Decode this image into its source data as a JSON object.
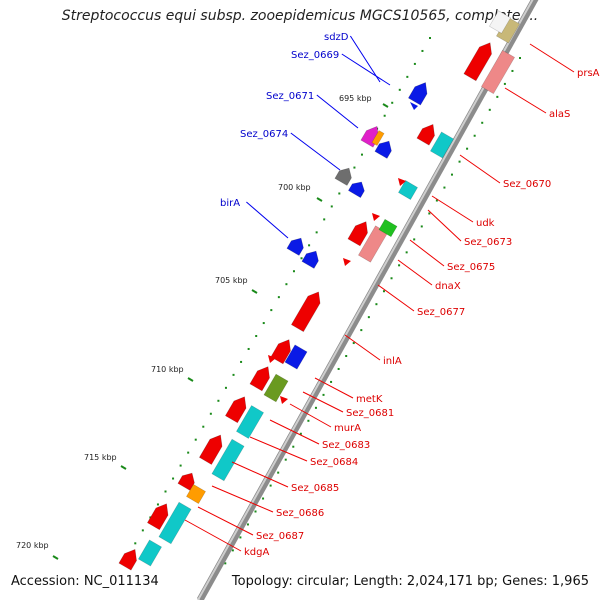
{
  "title": "Streptococcus equi subsp. zooepidemicus MGCS10565, complete ...",
  "footer": {
    "accession": "Accession: NC_011134",
    "topology": "Topology: circular; Length: 2,024,171 bp; Genes: 1,965"
  },
  "colors": {
    "backbone": "#8c8c8c",
    "forward_label": "#0000cc",
    "reverse_label": "#dd0000",
    "tick_mark": "#1a8a1a"
  },
  "kbp_labels": [
    "695 kbp",
    "700 kbp",
    "705 kbp",
    "710 kbp",
    "715 kbp",
    "720 kbp"
  ],
  "forward_genes": [
    "sdzD",
    "Sez_0669",
    "Sez_0671",
    "Sez_0674",
    "birA"
  ],
  "reverse_genes": [
    "prsA",
    "alaS",
    "Sez_0670",
    "udk",
    "Sez_0673",
    "Sez_0675",
    "dnaX",
    "Sez_0677",
    "inlA",
    "metK",
    "Sez_0681",
    "murA",
    "Sez_0683",
    "Sez_0684",
    "Sez_0685",
    "Sez_0686",
    "Sez_0687",
    "kdgA"
  ]
}
